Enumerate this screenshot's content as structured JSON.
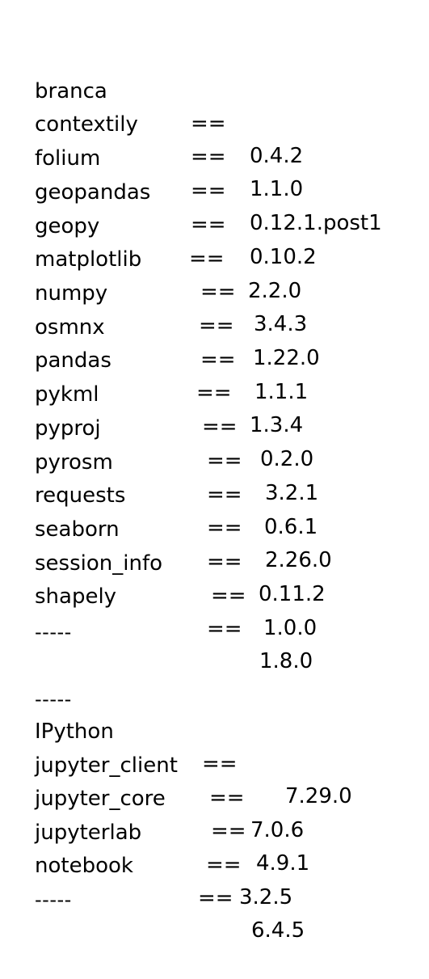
{
  "section1": {
    "packages": [
      {
        "name": "branca",
        "op": "==",
        "version": "0.4.2"
      },
      {
        "name": "contextily",
        "op": "==",
        "version": "1.1.0"
      },
      {
        "name": "folium",
        "op": "==",
        "version": "0.12.1.post1"
      },
      {
        "name": "geopandas",
        "op": "==",
        "version": "0.10.2"
      },
      {
        "name": "geopy",
        "op": "==",
        "version": "2.2.0"
      },
      {
        "name": "matplotlib",
        "op": "==",
        "version": "3.4.3"
      },
      {
        "name": "numpy",
        "op": "==",
        "version": "1.22.0"
      },
      {
        "name": "osmnx",
        "op": "==",
        "version": "1.1.1"
      },
      {
        "name": "pandas",
        "op": "==",
        "version": "1.3.4"
      },
      {
        "name": "pykml",
        "op": "==",
        "version": "0.2.0"
      },
      {
        "name": "pyproj",
        "op": "==",
        "version": "3.2.1"
      },
      {
        "name": "pyrosm",
        "op": "==",
        "version": "0.6.1"
      },
      {
        "name": "requests",
        "op": "==",
        "version": "2.26.0"
      },
      {
        "name": "seaborn",
        "op": "==",
        "version": "0.11.2"
      },
      {
        "name": "session_info",
        "op": "==",
        "version": "1.0.0"
      },
      {
        "name": "shapely",
        "op": "==",
        "version": "1.8.0"
      }
    ],
    "end_separator": "-----"
  },
  "section2": {
    "start_separator": "-----",
    "packages": [
      {
        "name": "IPython",
        "op": "==",
        "version": "7.29.0"
      },
      {
        "name": "jupyter_client",
        "op": "==",
        "version": "7.0.6"
      },
      {
        "name": "jupyter_core",
        "op": "==",
        "version": "4.9.1"
      },
      {
        "name": "jupyterlab",
        "op": "==",
        "version": "3.2.5"
      },
      {
        "name": "notebook",
        "op": "==",
        "version": "6.4.5"
      }
    ],
    "end_separator": "-----"
  }
}
